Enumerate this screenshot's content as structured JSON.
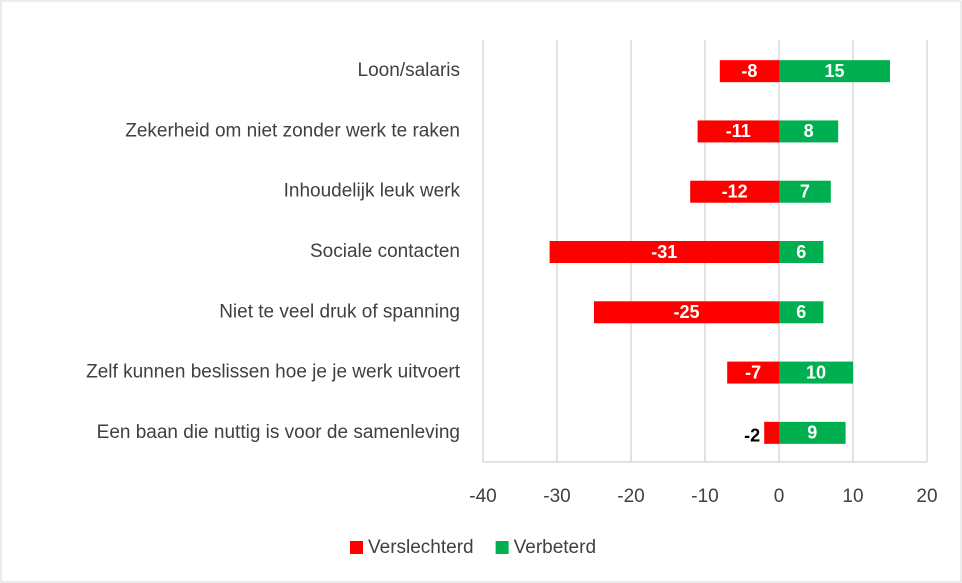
{
  "chart_data": {
    "type": "bar",
    "orientation": "horizontal",
    "categories": [
      "Loon/salaris",
      "Zekerheid om niet zonder werk te raken",
      "Inhoudelijk leuk werk",
      "Sociale contacten",
      "Niet te veel druk of spanning",
      "Zelf kunnen beslissen hoe je je werk uitvoert",
      "Een baan die nuttig is voor de samenleving"
    ],
    "series": [
      {
        "name": "Verslechterd",
        "color": "#ff0000",
        "values": [
          -8,
          -11,
          -12,
          -31,
          -25,
          -7,
          -2
        ]
      },
      {
        "name": "Verbeterd",
        "color": "#00b050",
        "values": [
          15,
          8,
          7,
          6,
          6,
          10,
          9
        ]
      }
    ],
    "xlim": [
      -40,
      20
    ],
    "xticks": [
      -40,
      -30,
      -20,
      -10,
      0,
      10,
      20
    ],
    "grid": true,
    "legend": "bottom"
  }
}
